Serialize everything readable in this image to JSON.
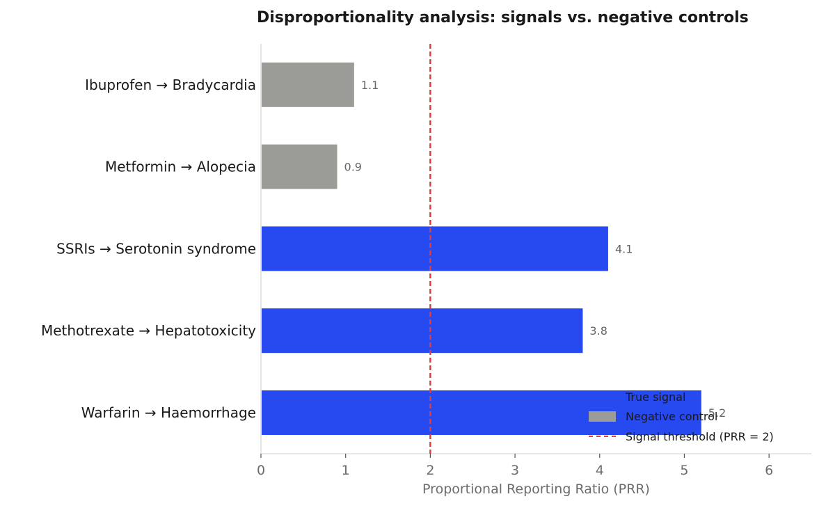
{
  "chart_data": {
    "type": "bar",
    "orientation": "horizontal",
    "title": "Disproportionality analysis: signals vs. negative controls",
    "xlabel": "Proportional Reporting Ratio (PRR)",
    "ylabel": "",
    "xlim": [
      0,
      6.5
    ],
    "xticks": [
      0,
      1,
      2,
      3,
      4,
      5,
      6
    ],
    "categories": [
      "Warfarin → Haemorrhage",
      "Methotrexate → Hepatotoxicity",
      "SSRIs → Serotonin syndrome",
      "Metformin → Alopecia",
      "Ibuprofen → Bradycardia"
    ],
    "values": [
      5.2,
      3.8,
      4.1,
      0.9,
      1.1
    ],
    "value_labels": [
      "5.2",
      "3.8",
      "4.1",
      "0.9",
      "1.1"
    ],
    "groups": [
      "True signal",
      "True signal",
      "True signal",
      "Negative control",
      "Negative control"
    ],
    "group_colors": {
      "True signal": "#2749f0",
      "Negative control": "#9b9b98"
    },
    "threshold": {
      "value": 2,
      "label": "Signal threshold (PRR = 2)",
      "color": "#e03c3c",
      "style": "dashed"
    },
    "legend": {
      "position": "bottom-right",
      "entries": [
        "True signal",
        "Negative control",
        "Signal threshold (PRR = 2)"
      ]
    },
    "grid": false
  }
}
